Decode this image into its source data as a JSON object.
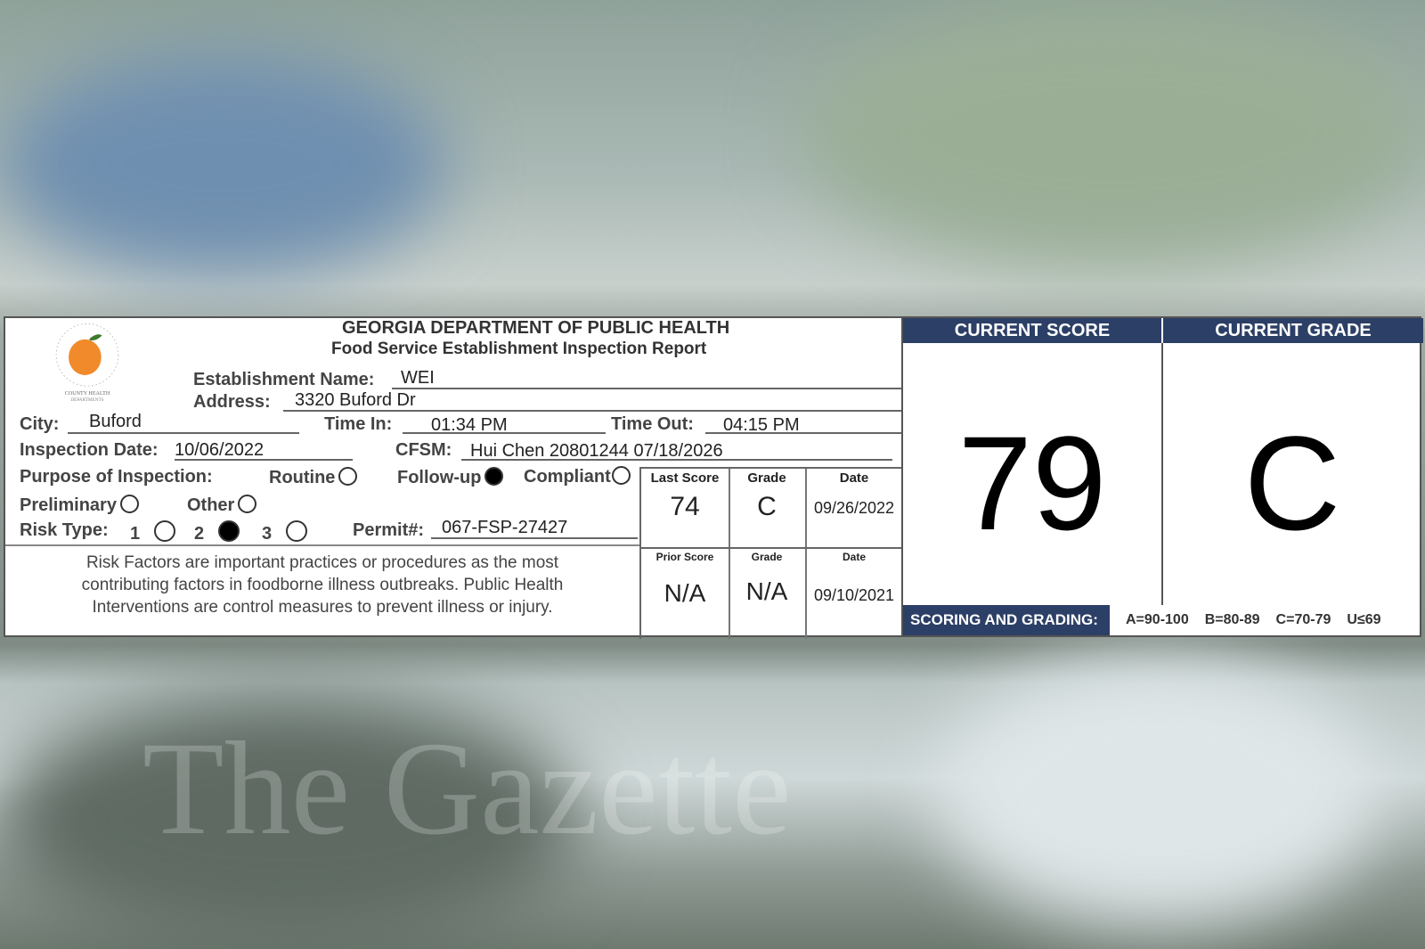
{
  "watermark": "The Gazette",
  "header": {
    "title": "GEORGIA DEPARTMENT OF PUBLIC HEALTH",
    "subtitle": "Food Service Establishment Inspection Report"
  },
  "logo": {
    "text": "GWINNETT ROCKDALE NEWTON COUNTY HEALTH DEPARTMENTS"
  },
  "fields": {
    "establishment_label": "Establishment Name:",
    "establishment": "WEI",
    "address_label": "Address:",
    "address": "3320 Buford Dr",
    "city_label": "City:",
    "city": "Buford",
    "time_in_label": "Time In:",
    "time_in": "01:34 PM",
    "time_out_label": "Time Out:",
    "time_out": "04:15 PM",
    "date_label": "Inspection Date:",
    "date": "10/06/2022",
    "cfsm_label": "CFSM:",
    "cfsm": "Hui Chen 20801244 07/18/2026",
    "purpose_label": "Purpose of Inspection:",
    "routine": "Routine",
    "followup": "Follow-up",
    "compliant": "Compliant",
    "preliminary": "Preliminary",
    "other": "Other",
    "purpose_selected": "Follow-up",
    "risk_label": "Risk Type:",
    "risk_1": "1",
    "risk_2": "2",
    "risk_3": "3",
    "risk_selected": "2",
    "permit_label": "Permit#:",
    "permit": "067-FSP-27427"
  },
  "note": {
    "l1": "Risk Factors are important practices or procedures as the most",
    "l2": "contributing factors in foodborne illness outbreaks. Public Health",
    "l3": "Interventions are control measures to prevent illness or injury."
  },
  "history": {
    "last": {
      "score_label": "Last Score",
      "grade_label": "Grade",
      "date_label": "Date",
      "score": "74",
      "grade": "C",
      "date": "09/26/2022"
    },
    "prior": {
      "score_label": "Prior Score",
      "grade_label": "Grade",
      "date_label": "Date",
      "score": "N/A",
      "grade": "N/A",
      "date": "09/10/2021"
    }
  },
  "current": {
    "score_label": "CURRENT SCORE",
    "grade_label": "CURRENT GRADE",
    "score": "79",
    "grade": "C"
  },
  "scoring": {
    "label": "SCORING AND GRADING:",
    "a": "A=90-100",
    "b": "B=80-89",
    "c": "C=70-79",
    "u": "U≤69"
  },
  "colors": {
    "header_bar": "#2c3f66",
    "peach": "#f08a2a"
  }
}
